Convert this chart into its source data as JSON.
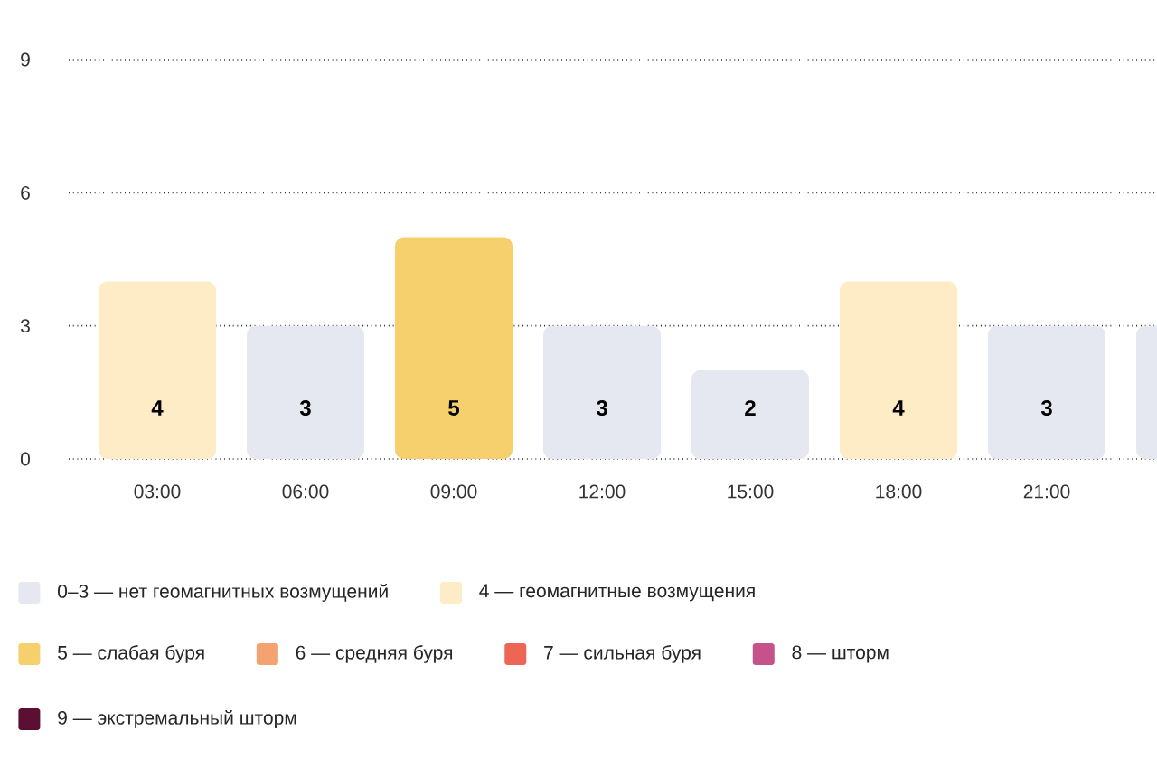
{
  "chart_data": {
    "type": "bar",
    "categories": [
      "03:00",
      "06:00",
      "09:00",
      "12:00",
      "15:00",
      "18:00",
      "21:00",
      null
    ],
    "series": [
      {
        "name": "0–3 — нет геомагнитных возмущений",
        "color": "#e6e8f1",
        "values": [
          null,
          3,
          null,
          3,
          2,
          null,
          3,
          3
        ],
        "value_labels": [
          null,
          "3",
          null,
          "3",
          "2",
          null,
          "3",
          null
        ]
      },
      {
        "name": "4 — геомагнитные возмущения",
        "color": "#fdecc6",
        "values": [
          4,
          null,
          null,
          null,
          null,
          4,
          null,
          null
        ],
        "value_labels": [
          "4",
          null,
          null,
          null,
          null,
          "4",
          null,
          null
        ]
      },
      {
        "name": "5 — слабая буря",
        "color": "#f7d06e",
        "values": [
          null,
          null,
          5,
          null,
          null,
          null,
          null,
          null
        ],
        "value_labels": [
          null,
          null,
          "5",
          null,
          null,
          null,
          null,
          null
        ]
      },
      {
        "name": "6 — средняя буря",
        "color": "#f4a26f",
        "values": [
          null,
          null,
          null,
          null,
          null,
          null,
          null,
          null
        ]
      },
      {
        "name": "7 — сильная буря",
        "color": "#ec6555",
        "values": [
          null,
          null,
          null,
          null,
          null,
          null,
          null,
          null
        ]
      },
      {
        "name": "8 — шторм",
        "color": "#c5528a",
        "values": [
          null,
          null,
          null,
          null,
          null,
          null,
          null,
          null
        ]
      },
      {
        "name": "9 — экстремальный шторм",
        "color": "#5a0f33",
        "values": [
          null,
          null,
          null,
          null,
          null,
          null,
          null,
          null
        ]
      }
    ],
    "ylim": [
      0,
      9
    ],
    "yticks": [
      0,
      3,
      6,
      9
    ],
    "grid": "y",
    "legend": "bottom"
  }
}
